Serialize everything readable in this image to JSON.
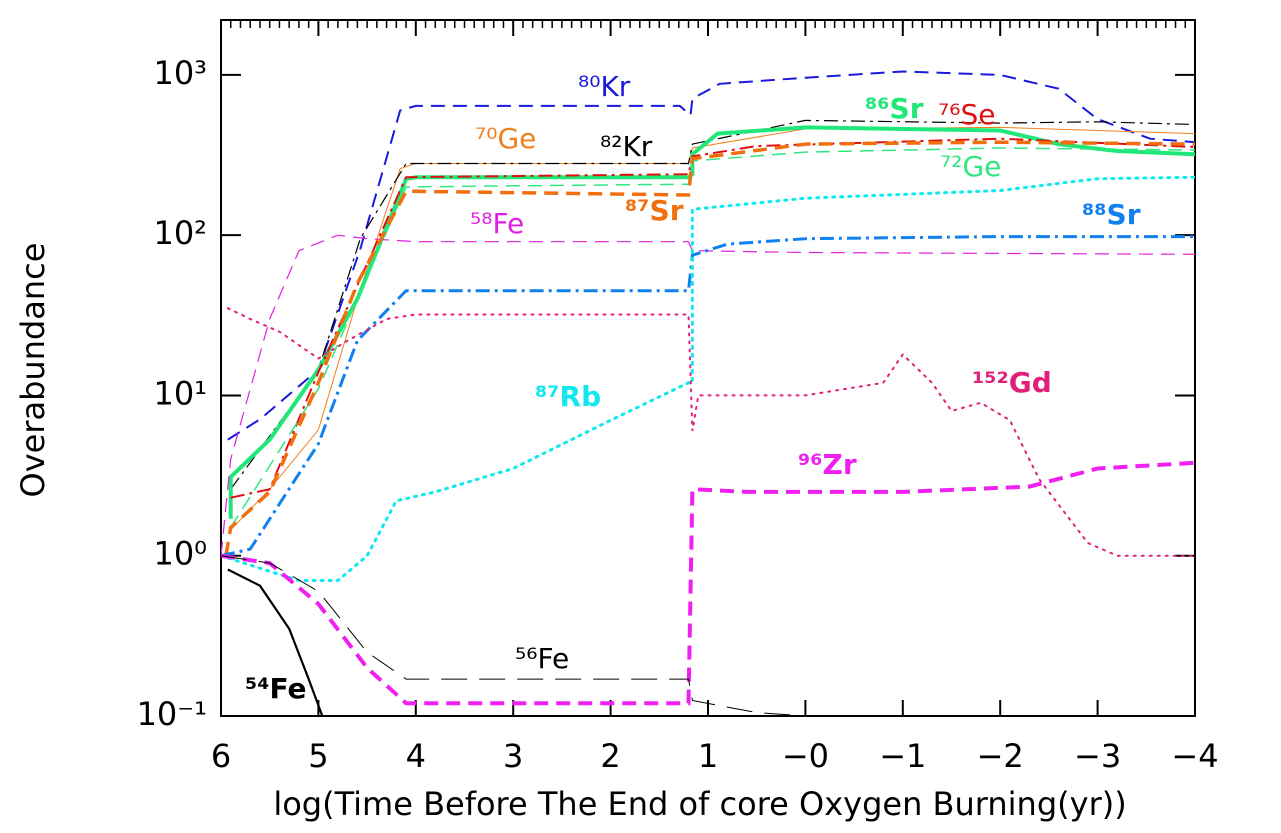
{
  "chart_data": {
    "type": "line",
    "xlabel": "log(Time Before The End of core Oxygen Burning(yr))",
    "ylabel": "Overabundance",
    "xlim": [
      6,
      -4
    ],
    "ylim": [
      0.1,
      2200
    ],
    "ylog": true,
    "xticks": [
      6,
      5,
      4,
      3,
      2,
      1,
      {
        "value": 0,
        "label": "−0"
      },
      {
        "value": -1,
        "label": "−1"
      },
      {
        "value": -2,
        "label": "−2"
      },
      {
        "value": -3,
        "label": "−3"
      },
      {
        "value": -4,
        "label": "−4"
      }
    ],
    "yticks": [
      {
        "value": 0.1,
        "label": "10⁻¹"
      },
      {
        "value": 1,
        "label": "10⁰"
      },
      {
        "value": 10,
        "label": "10¹"
      },
      {
        "value": 100,
        "label": "10²"
      },
      {
        "value": 1000,
        "label": "10³"
      }
    ],
    "series": [
      {
        "name": "⁸⁰Kr",
        "color": "#1a1adc",
        "dash": "dashed",
        "width": 2,
        "x": [
          5.93,
          5.6,
          5.0,
          4.57,
          4.16,
          4.0,
          3.0,
          2.0,
          1.29,
          1.18,
          1.16,
          0.88,
          0,
          -1,
          -2,
          -2.6,
          -3,
          -3.54,
          -4
        ],
        "values": [
          5.3,
          7.1,
          14.5,
          82,
          600,
          640,
          640,
          640,
          640,
          560,
          710,
          880,
          960,
          1050,
          1000,
          820,
          530,
          400,
          380
        ]
      },
      {
        "name": "⁷⁰Ge",
        "color": "#f08020",
        "dash": "solid",
        "width": 1,
        "x": [
          5.9,
          5.5,
          5.0,
          4.57,
          4.16,
          4.0,
          1.2,
          1.16,
          0,
          -2,
          -4
        ],
        "values": [
          1.45,
          2.6,
          6.1,
          46,
          260,
          280,
          280,
          350,
          460,
          470,
          430
        ]
      },
      {
        "name": "⁸²Kr",
        "color": "#000000",
        "dash": "dashdot",
        "width": 1.2,
        "x": [
          5.9,
          5.0,
          4.57,
          4.1,
          1.2,
          1.16,
          0,
          -2,
          -3,
          -4
        ],
        "values": [
          2.6,
          14.5,
          95,
          280,
          280,
          370,
          520,
          500,
          510,
          490
        ]
      },
      {
        "name": "⁸⁶Sr",
        "color": "#20e878",
        "dash": "solid",
        "width": 4,
        "x": [
          5.9,
          5.9,
          5.5,
          5.0,
          4.6,
          4.1,
          4.0,
          1.2,
          1.16,
          1.16,
          0.9,
          0,
          -2,
          -2.6,
          -3.2,
          -4
        ],
        "values": [
          1.7,
          3.1,
          5.3,
          14.5,
          40,
          224,
          230,
          230,
          240,
          320,
          430,
          470,
          450,
          370,
          335,
          320
        ]
      },
      {
        "name": "⁷⁶Se",
        "color": "#e01010",
        "dash": "dashdot",
        "width": 2,
        "x": [
          5.9,
          5.5,
          5.0,
          4.1,
          1.2,
          1.16,
          0.5,
          -2,
          -4
        ],
        "values": [
          2.3,
          2.6,
          14,
          230,
          240,
          310,
          360,
          400,
          355
        ]
      },
      {
        "name": "⁷²Ge",
        "color": "#30e880",
        "dash": "dashed",
        "width": 1.5,
        "x": [
          5.9,
          5.0,
          4.1,
          1.2,
          1.16,
          0,
          -2,
          -4
        ],
        "values": [
          1.5,
          11,
          200,
          208,
          290,
          330,
          350,
          340
        ]
      },
      {
        "name": "⁵⁸Fe",
        "color": "#e020e0",
        "dash": "dashed",
        "width": 1.2,
        "x": [
          6,
          5.9,
          5.5,
          5.2,
          4.8,
          4.5,
          4.0,
          1.2,
          1.16,
          0,
          -4
        ],
        "values": [
          1,
          4,
          30,
          80,
          100,
          95,
          91,
          91,
          80,
          78,
          76
        ]
      },
      {
        "name": "⁸⁷Sr",
        "color": "#f07010",
        "dash": "dashed",
        "width": 3.5,
        "x": [
          5.95,
          5.9,
          5.5,
          5.0,
          4.6,
          4.1,
          1.2,
          1.16,
          0,
          -2,
          -4
        ],
        "values": [
          1,
          1.5,
          2.5,
          12,
          50,
          188,
          178,
          300,
          370,
          380,
          370
        ]
      },
      {
        "name": "⁸⁸Sr",
        "color": "#1080f0",
        "dash": "dashdot",
        "width": 3,
        "x": [
          6,
          5.7,
          5.0,
          4.6,
          4.1,
          4.0,
          1.2,
          1.16,
          0.8,
          0,
          -2,
          -4
        ],
        "values": [
          1,
          1.1,
          5,
          22,
          45,
          45,
          45,
          75,
          88,
          95,
          98,
          98
        ]
      },
      {
        "name": "⁸⁷Rb",
        "color": "#10e8f0",
        "dash": "dotted",
        "width": 3,
        "x": [
          6,
          5.5,
          5.2,
          4.8,
          4.5,
          4.2,
          3.8,
          3.0,
          2.0,
          1.2,
          1.16,
          1.16,
          0,
          -2,
          -3,
          -4
        ],
        "values": [
          1,
          0.8,
          0.7,
          0.7,
          1.0,
          2.2,
          2.5,
          3.5,
          7,
          12,
          12,
          145,
          170,
          190,
          225,
          230
        ]
      },
      {
        "name": "¹⁵²Gd",
        "color": "#e0207a",
        "dash": "dotted",
        "width": 2,
        "x": [
          5.93,
          5.7,
          5.4,
          5.0,
          4.7,
          4.3,
          4.0,
          1.2,
          1.16,
          1.1,
          0,
          -0.8,
          -1.0,
          -1.3,
          -1.5,
          -1.8,
          -2.1,
          -2.4,
          -2.9,
          -3.2,
          -4
        ],
        "values": [
          35,
          30,
          25,
          17,
          22,
          30,
          32,
          32,
          6,
          10,
          10,
          12,
          18,
          12,
          8,
          9,
          7,
          3,
          1.2,
          1.0,
          1.0
        ]
      },
      {
        "name": "⁹⁶Zr",
        "color": "#f020f0",
        "dash": "dashed",
        "width": 4,
        "x": [
          6,
          5.5,
          5.0,
          4.5,
          4.1,
          1.2,
          1.16,
          0.6,
          -1,
          -2.3,
          -3,
          -4
        ],
        "values": [
          1,
          0.9,
          0.5,
          0.2,
          0.12,
          0.12,
          2.6,
          2.5,
          2.5,
          2.7,
          3.5,
          3.8
        ]
      },
      {
        "name": "⁵⁶Fe",
        "color": "#000000",
        "dash": "longdash",
        "width": 1,
        "x": [
          6,
          5.5,
          5.0,
          4.5,
          4.1,
          1.2,
          1.16,
          0.5,
          0,
          -4
        ],
        "values": [
          1,
          0.9,
          0.6,
          0.25,
          0.17,
          0.17,
          0.125,
          0.105,
          0.1,
          0.1
        ]
      },
      {
        "name": "⁵⁴Fe",
        "color": "#000000",
        "dash": "solid",
        "width": 2.2,
        "x": [
          5.93,
          5.6,
          5.3,
          5.1,
          4.96
        ],
        "values": [
          0.82,
          0.65,
          0.35,
          0.17,
          0.1
        ]
      }
    ]
  }
}
